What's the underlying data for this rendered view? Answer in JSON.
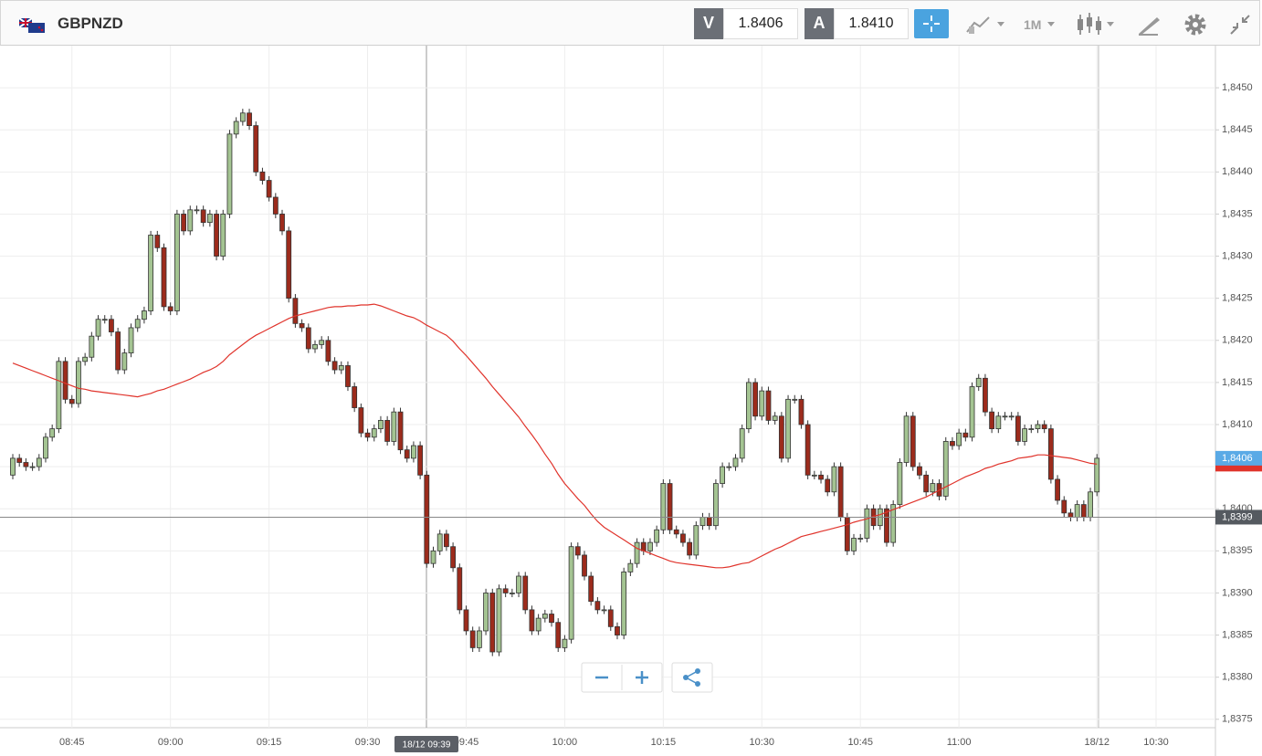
{
  "header": {
    "symbol": "GBPNZD",
    "bid_label": "V",
    "bid": "1.8406",
    "ask_label": "A",
    "ask": "1.8410",
    "timeframe": "1M"
  },
  "chart_data": {
    "type": "candlestick",
    "categories": [
      null,
      null,
      null,
      null,
      null,
      null,
      null,
      null,
      null,
      "08:45",
      null,
      null,
      null,
      null,
      null,
      null,
      null,
      null,
      null,
      null,
      null,
      null,
      null,
      null,
      "09:00",
      null,
      null,
      null,
      null,
      null,
      null,
      null,
      null,
      null,
      null,
      null,
      null,
      null,
      null,
      "09:15",
      null,
      null,
      null,
      null,
      null,
      null,
      null,
      null,
      null,
      null,
      null,
      null,
      null,
      null,
      "09:30",
      null,
      null,
      null,
      null,
      null,
      null,
      null,
      null,
      null,
      null,
      null,
      null,
      null,
      null,
      "09:45",
      null,
      null,
      null,
      null,
      null,
      null,
      null,
      null,
      null,
      null,
      null,
      null,
      null,
      null,
      "10:00",
      null,
      null,
      null,
      null,
      null,
      null,
      null,
      null,
      null,
      null,
      null,
      null,
      null,
      null,
      "10:15",
      null,
      null,
      null,
      null,
      null,
      null,
      null,
      null,
      null,
      null,
      null,
      null,
      null,
      null,
      "10:30",
      null,
      null,
      null,
      null,
      null,
      null,
      null,
      null,
      null,
      null,
      null,
      null,
      null,
      null,
      "10:45",
      null,
      null,
      null,
      null,
      null,
      null,
      null,
      null,
      null,
      null,
      null,
      null,
      null,
      null,
      "11:00",
      null,
      null,
      null,
      null,
      null,
      null,
      null,
      null,
      null,
      null,
      null,
      null,
      null,
      null,
      null,
      null,
      null,
      null,
      null,
      null,
      "18/12",
      null,
      null,
      null,
      null,
      null,
      null,
      null,
      null,
      "10:30"
    ],
    "open": [
      1.8404,
      1.8406,
      1.84055,
      1.8405,
      1.8405,
      1.8406,
      1.84085,
      1.84095,
      1.84175,
      1.8413,
      1.84125,
      1.84175,
      1.8418,
      1.84205,
      1.84225,
      1.84225,
      1.8421,
      1.84165,
      1.84185,
      1.84215,
      1.84225,
      1.84235,
      1.84325,
      1.8431,
      1.8424,
      1.84235,
      1.8435,
      1.8433,
      1.84355,
      1.84355,
      1.8434,
      1.8435,
      1.843,
      1.8435,
      1.84445,
      1.8446,
      1.8447,
      1.84455,
      1.844,
      1.8439,
      1.8437,
      1.8435,
      1.8433,
      1.8425,
      1.8422,
      1.84215,
      1.8419,
      1.84195,
      1.842,
      1.84175,
      1.84165,
      1.8417,
      1.84145,
      1.8412,
      1.8409,
      1.84085,
      1.84095,
      1.84105,
      1.8408,
      1.84115,
      1.8407,
      1.8406,
      1.84075,
      1.8404,
      1.83935,
      1.8395,
      1.8397,
      1.83955,
      1.8393,
      1.8388,
      1.83855,
      1.83835,
      1.83855,
      1.839,
      1.8383,
      1.83905,
      1.839,
      1.839,
      1.8392,
      1.8388,
      1.83855,
      1.8387,
      1.83875,
      1.83865,
      1.83835,
      1.83845,
      1.83955,
      1.83945,
      1.8392,
      1.8389,
      1.8388,
      1.8388,
      1.8386,
      1.8385,
      1.83925,
      1.83935,
      1.8396,
      1.8395,
      1.8396,
      1.83975,
      1.8403,
      1.83975,
      1.8397,
      1.8396,
      1.83945,
      1.8398,
      1.8399,
      1.8398,
      1.8403,
      1.8405,
      1.8405,
      1.8406,
      1.84095,
      1.8415,
      1.8411,
      1.8414,
      1.84105,
      1.8411,
      1.8406,
      1.8413,
      1.8413,
      1.841,
      1.8404,
      1.8404,
      1.84035,
      1.8402,
      1.8405,
      1.8399,
      1.8395,
      1.83965,
      1.83965,
      1.84,
      1.8398,
      1.84,
      1.8396,
      1.84005,
      1.84055,
      1.8411,
      1.8405,
      1.8404,
      1.8402,
      1.8403,
      1.84015,
      1.8408,
      1.84075,
      1.8409,
      1.84085,
      1.84145,
      1.84155,
      1.84115,
      1.84095,
      1.8411,
      1.8411,
      1.8411,
      1.8408,
      1.84095,
      1.84095,
      1.841,
      1.84095,
      1.84035,
      1.8401,
      1.83995,
      1.8399,
      1.84005,
      1.8399,
      1.8402,
      null,
      null,
      null,
      null,
      null,
      null,
      null,
      null,
      null
    ],
    "high": [
      1.84065,
      1.84065,
      1.8406,
      1.84055,
      1.84065,
      1.8409,
      1.841,
      1.8418,
      1.8418,
      1.84135,
      1.8418,
      1.84185,
      1.8421,
      1.8423,
      1.8423,
      1.8423,
      1.84215,
      1.8419,
      1.8422,
      1.8423,
      1.8424,
      1.8433,
      1.8433,
      1.84315,
      1.84245,
      1.84355,
      1.84355,
      1.8436,
      1.8436,
      1.8436,
      1.84355,
      1.84355,
      1.84355,
      1.8445,
      1.84465,
      1.84475,
      1.84475,
      1.8446,
      1.84405,
      1.84395,
      1.84375,
      1.84355,
      1.84335,
      1.84255,
      1.84225,
      1.8422,
      1.842,
      1.84205,
      1.84205,
      1.8418,
      1.84175,
      1.84175,
      1.8415,
      1.84125,
      1.84095,
      1.841,
      1.8411,
      1.8411,
      1.8412,
      1.8412,
      1.84075,
      1.8408,
      1.8408,
      1.84045,
      1.83955,
      1.83975,
      1.83975,
      1.8396,
      1.83935,
      1.83885,
      1.8386,
      1.8386,
      1.83905,
      1.83905,
      1.8391,
      1.8391,
      1.83905,
      1.83925,
      1.83925,
      1.83885,
      1.83875,
      1.8388,
      1.8388,
      1.8387,
      1.8385,
      1.8396,
      1.8396,
      1.8395,
      1.83925,
      1.83895,
      1.83885,
      1.83885,
      1.83865,
      1.8393,
      1.8394,
      1.83965,
      1.83965,
      1.83965,
      1.8398,
      1.84035,
      1.84035,
      1.8398,
      1.83975,
      1.83965,
      1.83985,
      1.83995,
      1.83995,
      1.84035,
      1.84055,
      1.84055,
      1.84065,
      1.841,
      1.84155,
      1.84155,
      1.84145,
      1.84145,
      1.84115,
      1.84115,
      1.84135,
      1.84135,
      1.84135,
      1.84105,
      1.84045,
      1.84045,
      1.8404,
      1.84055,
      1.84055,
      1.83995,
      1.8397,
      1.8397,
      1.84005,
      1.84005,
      1.84005,
      1.84005,
      1.8401,
      1.8406,
      1.84115,
      1.84115,
      1.84055,
      1.84045,
      1.84035,
      1.84035,
      1.84085,
      1.84085,
      1.84095,
      1.84095,
      1.8415,
      1.8416,
      1.8416,
      1.8412,
      1.84115,
      1.84115,
      1.84115,
      1.84115,
      1.841,
      1.841,
      1.84105,
      1.84105,
      1.841,
      1.8404,
      1.84015,
      1.84,
      1.8401,
      1.8401,
      1.84025,
      1.84065,
      null,
      null,
      null,
      null,
      null,
      null,
      null,
      null,
      null
    ],
    "low": [
      1.84035,
      1.8405,
      1.84045,
      1.84045,
      1.84045,
      1.84055,
      1.8408,
      1.8409,
      1.84125,
      1.8412,
      1.8412,
      1.8417,
      1.84175,
      1.842,
      1.8422,
      1.84205,
      1.8416,
      1.8416,
      1.8418,
      1.8421,
      1.8422,
      1.8423,
      1.84305,
      1.84235,
      1.8423,
      1.8423,
      1.84325,
      1.84325,
      1.8435,
      1.84335,
      1.84335,
      1.84295,
      1.84295,
      1.84345,
      1.8444,
      1.84455,
      1.8445,
      1.84395,
      1.84385,
      1.84365,
      1.84345,
      1.84325,
      1.84245,
      1.84215,
      1.8421,
      1.84185,
      1.84185,
      1.8419,
      1.8417,
      1.8416,
      1.8416,
      1.8414,
      1.84115,
      1.84085,
      1.8408,
      1.8408,
      1.8409,
      1.84075,
      1.84075,
      1.84065,
      1.84055,
      1.84055,
      1.84035,
      1.8393,
      1.8393,
      1.83945,
      1.8395,
      1.83925,
      1.83875,
      1.8385,
      1.8383,
      1.8383,
      1.8385,
      1.83825,
      1.83825,
      1.83895,
      1.83895,
      1.83895,
      1.83875,
      1.8385,
      1.8385,
      1.83865,
      1.8386,
      1.8383,
      1.8383,
      1.8384,
      1.8394,
      1.83915,
      1.83885,
      1.83875,
      1.83875,
      1.83855,
      1.83845,
      1.83845,
      1.8392,
      1.8393,
      1.83945,
      1.83945,
      1.83955,
      1.8397,
      1.8397,
      1.83965,
      1.83955,
      1.8394,
      1.8394,
      1.83975,
      1.83975,
      1.83975,
      1.84025,
      1.84045,
      1.84045,
      1.84055,
      1.8409,
      1.84105,
      1.84105,
      1.841,
      1.841,
      1.84055,
      1.84055,
      1.84125,
      1.84095,
      1.84035,
      1.84035,
      1.8403,
      1.84015,
      1.84015,
      1.83985,
      1.83945,
      1.83945,
      1.8396,
      1.8396,
      1.83975,
      1.83975,
      1.83955,
      1.83955,
      1.84,
      1.8405,
      1.84045,
      1.84035,
      1.84015,
      1.84015,
      1.8401,
      1.8401,
      1.8407,
      1.8407,
      1.8408,
      1.8408,
      1.8414,
      1.8411,
      1.8409,
      1.8409,
      1.84105,
      1.84105,
      1.84075,
      1.84075,
      1.8409,
      1.8409,
      1.8409,
      1.8403,
      1.84005,
      1.8399,
      1.83985,
      1.83985,
      1.83985,
      1.83985,
      1.84015,
      null,
      null,
      null,
      null,
      null,
      null,
      null,
      null,
      null
    ],
    "close": [
      1.8406,
      1.84055,
      1.8405,
      1.8405,
      1.8406,
      1.84085,
      1.84095,
      1.84175,
      1.8413,
      1.84125,
      1.84175,
      1.8418,
      1.84205,
      1.84225,
      1.84225,
      1.8421,
      1.84165,
      1.84185,
      1.84215,
      1.84225,
      1.84235,
      1.84325,
      1.8431,
      1.8424,
      1.84235,
      1.8435,
      1.8433,
      1.84355,
      1.84355,
      1.8434,
      1.8435,
      1.843,
      1.8435,
      1.84445,
      1.8446,
      1.8447,
      1.84455,
      1.844,
      1.8439,
      1.8437,
      1.8435,
      1.8433,
      1.8425,
      1.8422,
      1.84215,
      1.8419,
      1.84195,
      1.842,
      1.84175,
      1.84165,
      1.8417,
      1.84145,
      1.8412,
      1.8409,
      1.84085,
      1.84095,
      1.84105,
      1.8408,
      1.84115,
      1.8407,
      1.8406,
      1.84075,
      1.8404,
      1.83935,
      1.8395,
      1.8397,
      1.83955,
      1.8393,
      1.8388,
      1.83855,
      1.83835,
      1.83855,
      1.839,
      1.8383,
      1.83905,
      1.839,
      1.839,
      1.8392,
      1.8388,
      1.83855,
      1.8387,
      1.83875,
      1.83865,
      1.83835,
      1.83845,
      1.83955,
      1.83945,
      1.8392,
      1.8389,
      1.8388,
      1.8388,
      1.8386,
      1.8385,
      1.83925,
      1.83935,
      1.8396,
      1.8395,
      1.8396,
      1.83975,
      1.8403,
      1.83975,
      1.8397,
      1.8396,
      1.83945,
      1.8398,
      1.8399,
      1.8398,
      1.8403,
      1.8405,
      1.8405,
      1.8406,
      1.84095,
      1.8415,
      1.8411,
      1.8414,
      1.84105,
      1.8411,
      1.8406,
      1.8413,
      1.8413,
      1.841,
      1.8404,
      1.8404,
      1.84035,
      1.8402,
      1.8405,
      1.8399,
      1.8395,
      1.83965,
      1.83965,
      1.84,
      1.8398,
      1.84,
      1.8396,
      1.84005,
      1.84055,
      1.8411,
      1.8405,
      1.8404,
      1.8402,
      1.8403,
      1.84015,
      1.8408,
      1.84075,
      1.8409,
      1.84085,
      1.84145,
      1.84155,
      1.84115,
      1.84095,
      1.8411,
      1.8411,
      1.8411,
      1.8408,
      1.84095,
      1.84095,
      1.841,
      1.84095,
      1.84035,
      1.8401,
      1.83995,
      1.8399,
      1.84005,
      1.8399,
      1.8402,
      1.8406,
      null,
      null,
      null,
      null,
      null,
      null,
      null,
      null,
      null
    ],
    "up_color": "#a4c492",
    "down_color": "#9c2b1c",
    "series": [
      {
        "color": "#e0332b",
        "values": [
          1.84173,
          1.8417,
          1.84167,
          1.84164,
          1.84161,
          1.84158,
          1.84155,
          1.84152,
          1.84149,
          1.84146,
          1.84143,
          1.84142,
          1.8414,
          1.84139,
          1.84138,
          1.84137,
          1.84136,
          1.84135,
          1.84134,
          1.84133,
          1.84135,
          1.84137,
          1.8414,
          1.84142,
          1.84145,
          1.84148,
          1.84151,
          1.84154,
          1.84158,
          1.84162,
          1.84165,
          1.84169,
          1.84175,
          1.84183,
          1.84189,
          1.84195,
          1.84201,
          1.84206,
          1.8421,
          1.84214,
          1.84218,
          1.84222,
          1.84226,
          1.84229,
          1.84231,
          1.84233,
          1.84235,
          1.84237,
          1.84239,
          1.8424,
          1.8424,
          1.84241,
          1.84241,
          1.84242,
          1.84242,
          1.84243,
          1.84241,
          1.84238,
          1.84235,
          1.84232,
          1.84229,
          1.84227,
          1.84223,
          1.84218,
          1.84214,
          1.8421,
          1.84206,
          1.84199,
          1.8419,
          1.84182,
          1.84173,
          1.84164,
          1.84155,
          1.84145,
          1.84136,
          1.84127,
          1.84118,
          1.84109,
          1.84098,
          1.84088,
          1.84077,
          1.84065,
          1.84054,
          1.84041,
          1.8403,
          1.84021,
          1.84012,
          1.84004,
          1.83994,
          1.83985,
          1.83978,
          1.83973,
          1.83968,
          1.83963,
          1.83958,
          1.83953,
          1.8395,
          1.83947,
          1.83944,
          1.83941,
          1.83938,
          1.83936,
          1.83935,
          1.83934,
          1.83933,
          1.83932,
          1.83931,
          1.8393,
          1.8393,
          1.83931,
          1.83933,
          1.83935,
          1.83936,
          1.8394,
          1.83944,
          1.83948,
          1.83952,
          1.83955,
          1.83959,
          1.83963,
          1.83967,
          1.83969,
          1.83971,
          1.83973,
          1.83975,
          1.83977,
          1.83979,
          1.83981,
          1.83984,
          1.83986,
          1.83988,
          1.83991,
          1.83993,
          1.83996,
          1.83999,
          1.84002,
          1.84005,
          1.84008,
          1.84011,
          1.84014,
          1.84018,
          1.84022,
          1.84026,
          1.8403,
          1.84034,
          1.84038,
          1.84041,
          1.84044,
          1.84048,
          1.8405,
          1.84053,
          1.84055,
          1.84057,
          1.8406,
          1.84061,
          1.84062,
          1.84064,
          1.84064,
          1.84063,
          1.84062,
          1.84061,
          1.8406,
          1.84058,
          1.84056,
          1.84054,
          1.84053,
          null,
          null,
          null,
          null,
          null,
          null,
          null,
          null,
          null
        ]
      }
    ],
    "ylim": [
      1.8374,
      1.8455
    ],
    "yticks": [
      {
        "value": 1.8375,
        "label": "1,8375"
      },
      {
        "value": 1.838,
        "label": "1,8380"
      },
      {
        "value": 1.8385,
        "label": "1,8385"
      },
      {
        "value": 1.839,
        "label": "1,8390"
      },
      {
        "value": 1.8395,
        "label": "1,8395"
      },
      {
        "value": 1.84,
        "label": "1,8400"
      },
      {
        "value": 1.8405,
        "label": "1,8405"
      },
      {
        "value": 1.841,
        "label": "1,8410"
      },
      {
        "value": 1.8415,
        "label": "1,8415"
      },
      {
        "value": 1.842,
        "label": "1,8420"
      },
      {
        "value": 1.8425,
        "label": "1,8425"
      },
      {
        "value": 1.843,
        "label": "1,8430"
      },
      {
        "value": 1.8435,
        "label": "1,8435"
      },
      {
        "value": 1.844,
        "label": "1,8440"
      },
      {
        "value": 1.8445,
        "label": "1,8445"
      },
      {
        "value": 1.845,
        "label": "1,8450"
      }
    ],
    "grid": true,
    "current_price": {
      "value": 1.8406,
      "label": "1,8406",
      "color": "#5aaae6"
    },
    "crosshair": {
      "value": 1.8399,
      "label": "1,8399",
      "time_label": "18/12 09:39"
    }
  }
}
